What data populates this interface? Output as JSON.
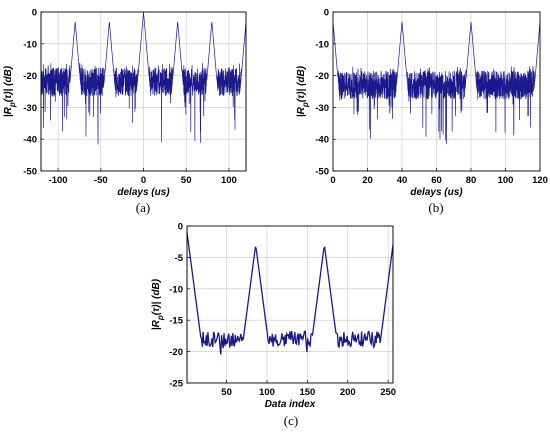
{
  "chart_data": [
    {
      "type": "line",
      "caption": "(a)",
      "xlabel": "delays (us)",
      "ylabel": "|R_p(τ)| (dB)",
      "xlim": [
        -120,
        120
      ],
      "ylim": [
        -50,
        0
      ],
      "xticks": [
        -100,
        -50,
        0,
        50,
        100
      ],
      "yticks": [
        0,
        -10,
        -20,
        -30,
        -40,
        -50
      ],
      "grid": true,
      "color": "#1a1a8c",
      "noise_floor_db": -22,
      "noise_min_db": -40,
      "peaks": [
        {
          "x": -80,
          "y": -3
        },
        {
          "x": -40,
          "y": -3
        },
        {
          "x": 0,
          "y": 0
        },
        {
          "x": 40,
          "y": -3
        },
        {
          "x": 80,
          "y": -3
        },
        {
          "x": 120,
          "y": -3
        }
      ]
    },
    {
      "type": "line",
      "caption": "(b)",
      "xlabel": "delays (us)",
      "ylabel": "|R_p(τ)| (dB)",
      "xlim": [
        0,
        120
      ],
      "ylim": [
        -50,
        0
      ],
      "xticks": [
        0,
        20,
        40,
        60,
        80,
        100,
        120
      ],
      "yticks": [
        0,
        -10,
        -20,
        -30,
        -40,
        -50
      ],
      "grid": true,
      "color": "#1a1a8c",
      "noise_floor_db": -23,
      "noise_min_db": -40,
      "peaks": [
        {
          "x": 0,
          "y": -3
        },
        {
          "x": 40,
          "y": -3
        },
        {
          "x": 80,
          "y": -3
        },
        {
          "x": 120,
          "y": -3
        }
      ]
    },
    {
      "type": "line",
      "caption": "(c)",
      "xlabel": "Data index",
      "ylabel": "|R_p(τ)| (dB)",
      "xlim": [
        1,
        256
      ],
      "ylim": [
        -25,
        0
      ],
      "xticks": [
        50,
        100,
        150,
        200,
        250
      ],
      "yticks": [
        0,
        -5,
        -10,
        -15,
        -20,
        -25
      ],
      "grid": true,
      "color": "#1a1a8c",
      "noise_floor_db": -18,
      "noise_min_db": -20.5,
      "peaks": [
        {
          "x": 1,
          "y": -1
        },
        {
          "x": 86,
          "y": -3
        },
        {
          "x": 171,
          "y": -3
        },
        {
          "x": 256,
          "y": -3
        }
      ]
    }
  ]
}
